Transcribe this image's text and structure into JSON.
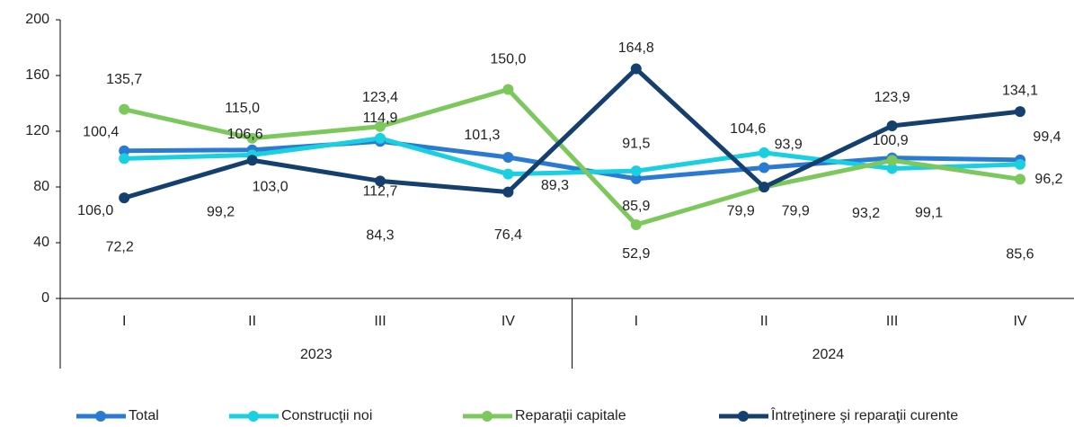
{
  "chart_data": {
    "type": "line",
    "categories": [
      "I",
      "II",
      "III",
      "IV",
      "I",
      "II",
      "III",
      "IV"
    ],
    "groups": [
      "2023",
      "2024"
    ],
    "ylim": [
      0,
      200
    ],
    "yticks": [
      0,
      40,
      80,
      120,
      160,
      200
    ],
    "legend": "bottom",
    "series": [
      {
        "name": "Total",
        "color": "#2a7ad2",
        "values": [
          106.0,
          106.6,
          112.7,
          101.3,
          85.9,
          93.9,
          100.9,
          99.4
        ],
        "value_labels": [
          "106,0",
          "106,6",
          "112,7",
          "101,3",
          "85,9",
          "93,9",
          "100,9",
          "99,4"
        ]
      },
      {
        "name": "Construcţii noi",
        "color": "#19cfe0",
        "values": [
          100.4,
          103.0,
          114.9,
          89.3,
          91.5,
          104.6,
          93.2,
          96.2
        ],
        "value_labels": [
          "100,4",
          "103,0",
          "114,9",
          "89,3",
          "91,5",
          "104,6",
          "93,2",
          "96,2"
        ]
      },
      {
        "name": "Reparaţii capitale",
        "color": "#7cc85c",
        "values": [
          135.7,
          115.0,
          123.4,
          150.0,
          52.9,
          79.9,
          99.1,
          85.6
        ],
        "value_labels": [
          "135,7",
          "115,0",
          "123,4",
          "150,0",
          "52,9",
          "79,9",
          "99,1",
          "85,6"
        ]
      },
      {
        "name": "Întreţinere şi reparaţii curente",
        "color": "#143f6e",
        "values": [
          72.2,
          99.2,
          84.3,
          76.4,
          164.8,
          79.9,
          123.9,
          134.1
        ],
        "value_labels": [
          "72,2",
          "99,2",
          "84,3",
          "76,4",
          "164,8",
          "79,9",
          "123,9",
          "134,1"
        ]
      }
    ]
  }
}
